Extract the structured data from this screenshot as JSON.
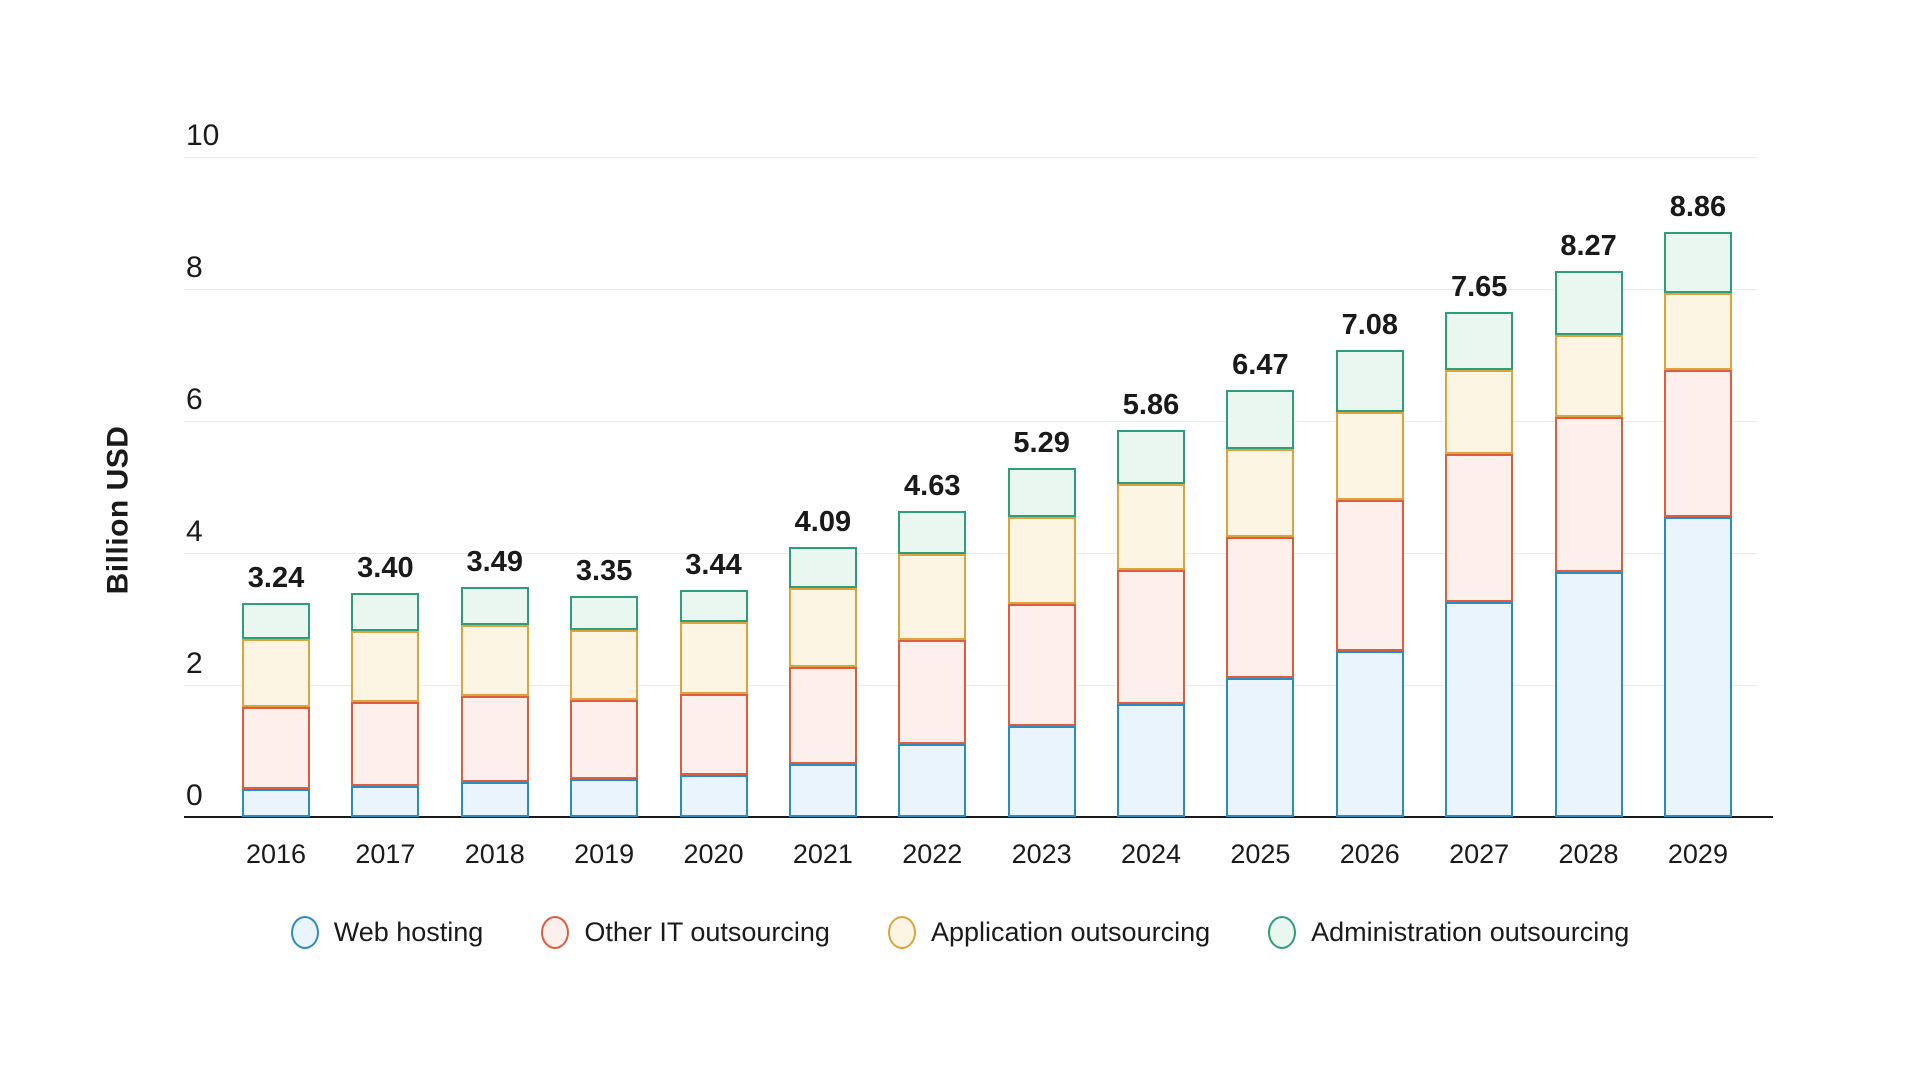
{
  "chart_data": {
    "type": "bar",
    "stacked": true,
    "title": "",
    "xlabel": "",
    "ylabel": "Billion USD",
    "ylim": [
      0,
      10
    ],
    "y_ticks": [
      0,
      2,
      4,
      6,
      8,
      10
    ],
    "grid": "horizontal",
    "legend_position": "bottom",
    "categories": [
      "2016",
      "2017",
      "2018",
      "2019",
      "2020",
      "2021",
      "2022",
      "2023",
      "2024",
      "2025",
      "2026",
      "2027",
      "2028",
      "2029"
    ],
    "totals": [
      "3.24",
      "3.40",
      "3.49",
      "3.35",
      "3.44",
      "4.09",
      "4.63",
      "5.29",
      "5.86",
      "6.47",
      "7.08",
      "7.65",
      "8.27",
      "8.86"
    ],
    "series": [
      {
        "name": "Web hosting",
        "fill": "#E9F4FC",
        "stroke": "#2B8CC4",
        "values": [
          0.43,
          0.47,
          0.53,
          0.58,
          0.64,
          0.8,
          1.1,
          1.38,
          1.71,
          2.1,
          2.51,
          3.26,
          3.71,
          4.54
        ]
      },
      {
        "name": "Other IT outsourcing",
        "fill": "#FDF0EC",
        "stroke": "#E05C3F",
        "values": [
          1.23,
          1.27,
          1.3,
          1.19,
          1.22,
          1.48,
          1.58,
          1.85,
          2.03,
          2.15,
          2.29,
          2.24,
          2.35,
          2.23
        ]
      },
      {
        "name": "Application outsourcing",
        "fill": "#FCF5E3",
        "stroke": "#DCA33F",
        "values": [
          1.03,
          1.08,
          1.08,
          1.06,
          1.09,
          1.19,
          1.3,
          1.32,
          1.3,
          1.32,
          1.33,
          1.28,
          1.25,
          1.17
        ]
      },
      {
        "name": "Administration outsourcing",
        "fill": "#EAF7F0",
        "stroke": "#2E9E79",
        "values": [
          0.55,
          0.58,
          0.58,
          0.52,
          0.49,
          0.62,
          0.65,
          0.74,
          0.82,
          0.9,
          0.95,
          0.87,
          0.96,
          0.92
        ]
      }
    ]
  },
  "colors": {
    "gridline": "#ECECEC",
    "axis_line": "#1A1A1A",
    "text": "#1A1A1A"
  }
}
